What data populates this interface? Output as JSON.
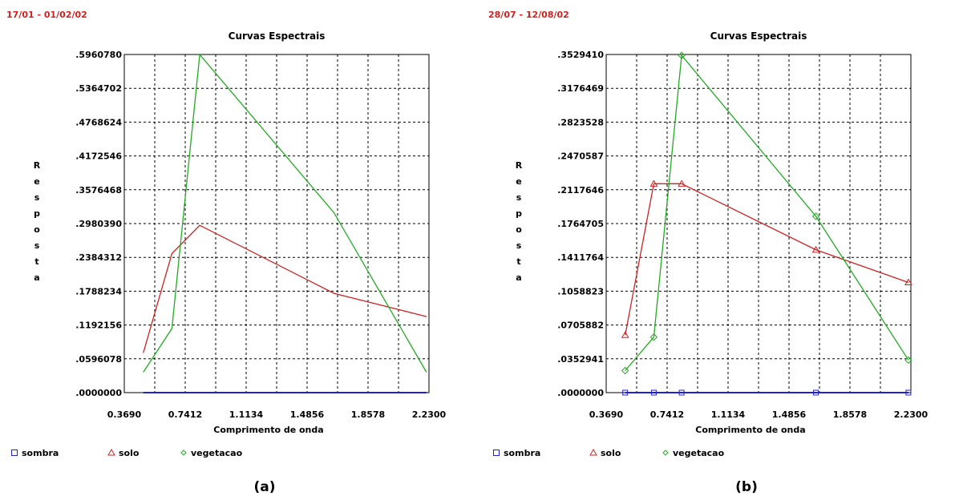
{
  "chart_data": [
    {
      "type": "line",
      "date_range": "17/01 - 01/02/02",
      "title": "Curvas Espectrais",
      "xlabel": "Comprimento de onda",
      "ylabel": "Resposta",
      "xlim": [
        0.369,
        2.23
      ],
      "ylim": [
        0.0,
        0.596078
      ],
      "x_ticks": [
        "0.3690",
        "0.7412",
        "1.1134",
        "1.4856",
        "1.8578",
        "2.2300"
      ],
      "y_ticks": [
        ".0000000",
        ".0596078",
        ".1192156",
        ".1788234",
        ".2384312",
        ".2980390",
        ".3576468",
        ".4172546",
        ".4768624",
        ".5364702",
        ".5960780"
      ],
      "grid": true,
      "series": [
        {
          "name": "sombra",
          "color": "#2222cc",
          "marker": "square",
          "show_markers": false,
          "x": [
            0.485,
            0.66,
            0.83,
            1.65,
            2.215
          ],
          "y": [
            0.0,
            0.0,
            0.0,
            0.0,
            0.0
          ]
        },
        {
          "name": "solo",
          "color": "#cc2222",
          "marker": "triangle",
          "show_markers": false,
          "x": [
            0.485,
            0.66,
            0.83,
            1.65,
            2.215
          ],
          "y": [
            0.07,
            0.245,
            0.295,
            0.175,
            0.134
          ]
        },
        {
          "name": "vegetacao",
          "color": "#22aa22",
          "marker": "diamond",
          "show_markers": false,
          "x": [
            0.485,
            0.66,
            0.83,
            1.65,
            2.215
          ],
          "y": [
            0.036,
            0.113,
            0.596,
            0.317,
            0.036
          ]
        }
      ],
      "panel_label": "(a)"
    },
    {
      "type": "line",
      "date_range": "28/07 - 12/08/02",
      "title": "Curvas Espectrais",
      "xlabel": "Comprimento de onda",
      "ylabel": "Resposta",
      "xlim": [
        0.369,
        2.23
      ],
      "ylim": [
        0.0,
        0.352941
      ],
      "x_ticks": [
        "0.3690",
        "0.7412",
        "1.1134",
        "1.4856",
        "1.8578",
        "2.2300"
      ],
      "y_ticks": [
        ".0000000",
        ".0352941",
        ".0705882",
        ".1058823",
        ".1411764",
        ".1764705",
        ".2117646",
        ".2470587",
        ".2823528",
        ".3176469",
        ".3529410"
      ],
      "grid": true,
      "series": [
        {
          "name": "sombra",
          "color": "#2222cc",
          "marker": "square",
          "show_markers": true,
          "x": [
            0.485,
            0.66,
            0.83,
            1.65,
            2.215
          ],
          "y": [
            0.0,
            0.0,
            0.0,
            0.0,
            0.0
          ]
        },
        {
          "name": "solo",
          "color": "#cc2222",
          "marker": "triangle",
          "show_markers": true,
          "x": [
            0.485,
            0.66,
            0.83,
            1.65,
            2.215
          ],
          "y": [
            0.06,
            0.218,
            0.218,
            0.149,
            0.115
          ]
        },
        {
          "name": "vegetacao",
          "color": "#22aa22",
          "marker": "diamond",
          "show_markers": true,
          "x": [
            0.485,
            0.66,
            0.83,
            1.65,
            2.215
          ],
          "y": [
            0.023,
            0.058,
            0.352,
            0.184,
            0.034
          ]
        }
      ],
      "panel_label": "(b)"
    }
  ]
}
